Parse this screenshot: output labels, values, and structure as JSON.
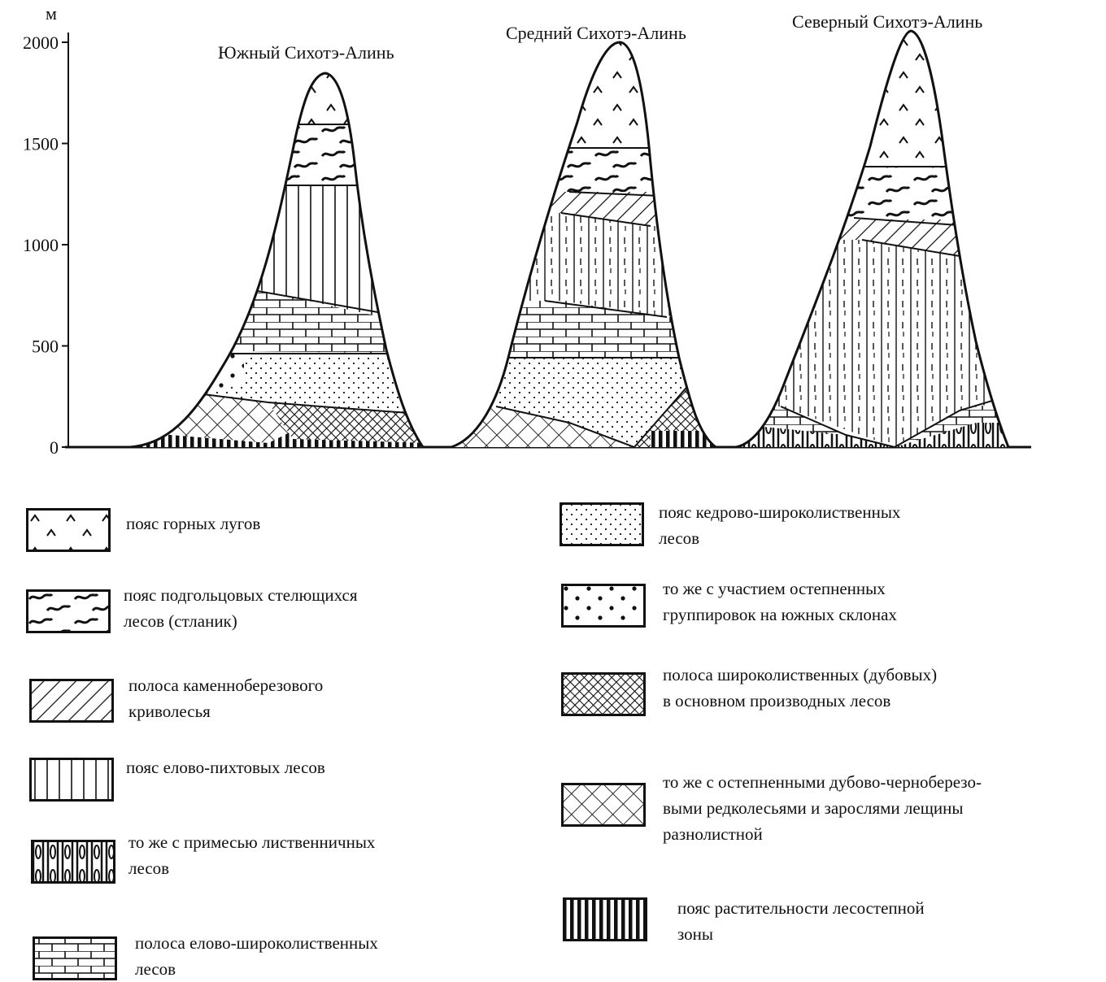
{
  "axis": {
    "unit": "м",
    "ticks": [
      {
        "value": 2000,
        "label": "2000"
      },
      {
        "value": 1500,
        "label": "1500"
      },
      {
        "value": 1000,
        "label": "1000"
      },
      {
        "value": 500,
        "label": "500"
      },
      {
        "value": 0,
        "label": "0"
      }
    ]
  },
  "peaks": [
    {
      "id": "south",
      "title": "Южный Сихотэ-Алинь",
      "summit_m": 1840
    },
    {
      "id": "middle",
      "title": "Средний Сихотэ-Алинь",
      "summit_m": 1990
    },
    {
      "id": "north",
      "title": "Северный Сихотэ-Алинь",
      "summit_m": 2060
    }
  ],
  "legend": [
    {
      "pattern": "meadow",
      "lines": [
        "пояс горных лугов"
      ]
    },
    {
      "pattern": "stlanik",
      "lines": [
        "пояс подгольцовых стелющихся",
        "лесов (стланик)"
      ]
    },
    {
      "pattern": "diag",
      "lines": [
        "полоса каменноберезового",
        "криволесья"
      ]
    },
    {
      "pattern": "vlines",
      "lines": [
        "пояс елово-пихтовых лесов"
      ]
    },
    {
      "pattern": "larch",
      "lines": [
        "то же с примесью лиственничных",
        "лесов"
      ]
    },
    {
      "pattern": "brick",
      "lines": [
        "полоса елово-широколиственных",
        "лесов"
      ]
    },
    {
      "pattern": "dotsfine",
      "lines": [
        "пояс кедрово-широколиственных",
        "лесов"
      ]
    },
    {
      "pattern": "dotsbig",
      "lines": [
        "то же с участием остепненных",
        "группировок на южных склонах"
      ]
    },
    {
      "pattern": "crossdense",
      "lines": [
        "полоса широколиственных (дубовых)",
        "в основном производных лесов"
      ]
    },
    {
      "pattern": "crossopen",
      "lines": [
        "то же с остепненными дубово-черноберезо-",
        "выми редколесьями и зарослями лещины",
        "разнолистной"
      ]
    },
    {
      "pattern": "bars",
      "lines": [
        "пояс растительности лесостепной",
        "зоны"
      ]
    }
  ]
}
